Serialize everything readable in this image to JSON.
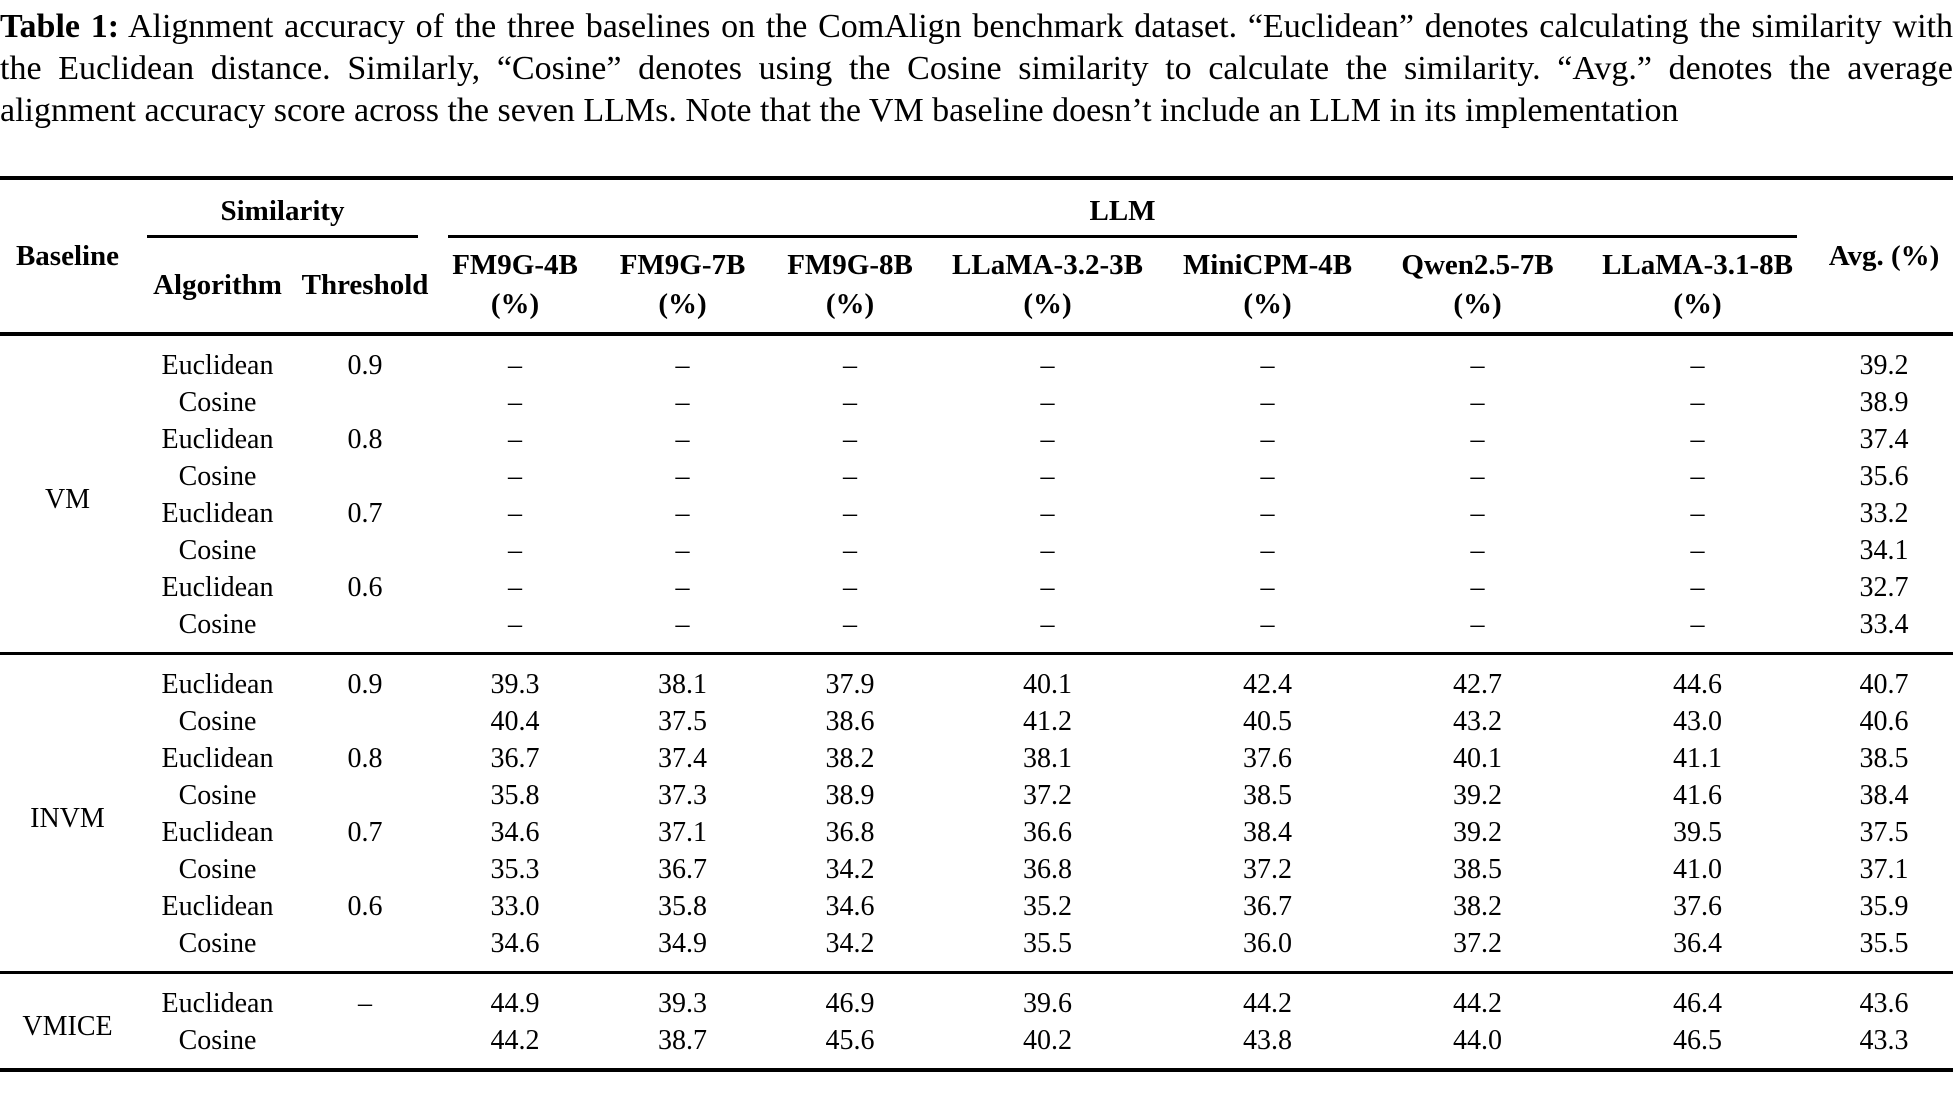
{
  "caption": {
    "label": "Table 1:",
    "text": "Alignment accuracy of the three baselines on the ComAlign benchmark dataset. “Euclidean” denotes calculating the similarity with the Euclidean distance. Similarly, “Cosine” denotes using the Cosine similarity to calculate the similarity. “Avg.” denotes the average alignment accuracy score across the seven LLMs. Note that the VM baseline doesn’t include an LLM in its implementation"
  },
  "table": {
    "header": {
      "baseline": "Baseline",
      "similarity_group": "Similarity",
      "llm_group": "LLM",
      "algorithm": "Algorithm",
      "threshold": "Threshold",
      "llm_columns": [
        "FM9G-4B",
        "FM9G-7B",
        "FM9G-8B",
        "LLaMA-3.2-3B",
        "MiniCPM-4B",
        "Qwen2.5-7B",
        "LLaMA-3.1-8B"
      ],
      "unit": "(%)",
      "avg": "Avg. (%)"
    },
    "sections": [
      {
        "baseline": "VM",
        "rows": [
          {
            "algorithm": "Euclidean",
            "threshold": "0.9",
            "values": [
              "–",
              "–",
              "–",
              "–",
              "–",
              "–",
              "–"
            ],
            "avg": "39.2"
          },
          {
            "algorithm": "Cosine",
            "threshold": "",
            "values": [
              "–",
              "–",
              "–",
              "–",
              "–",
              "–",
              "–"
            ],
            "avg": "38.9"
          },
          {
            "algorithm": "Euclidean",
            "threshold": "0.8",
            "values": [
              "–",
              "–",
              "–",
              "–",
              "–",
              "–",
              "–"
            ],
            "avg": "37.4"
          },
          {
            "algorithm": "Cosine",
            "threshold": "",
            "values": [
              "–",
              "–",
              "–",
              "–",
              "–",
              "–",
              "–"
            ],
            "avg": "35.6"
          },
          {
            "algorithm": "Euclidean",
            "threshold": "0.7",
            "values": [
              "–",
              "–",
              "–",
              "–",
              "–",
              "–",
              "–"
            ],
            "avg": "33.2"
          },
          {
            "algorithm": "Cosine",
            "threshold": "",
            "values": [
              "–",
              "–",
              "–",
              "–",
              "–",
              "–",
              "–"
            ],
            "avg": "34.1"
          },
          {
            "algorithm": "Euclidean",
            "threshold": "0.6",
            "values": [
              "–",
              "–",
              "–",
              "–",
              "–",
              "–",
              "–"
            ],
            "avg": "32.7"
          },
          {
            "algorithm": "Cosine",
            "threshold": "",
            "values": [
              "–",
              "–",
              "–",
              "–",
              "–",
              "–",
              "–"
            ],
            "avg": "33.4"
          }
        ]
      },
      {
        "baseline": "INVM",
        "rows": [
          {
            "algorithm": "Euclidean",
            "threshold": "0.9",
            "values": [
              "39.3",
              "38.1",
              "37.9",
              "40.1",
              "42.4",
              "42.7",
              "44.6"
            ],
            "avg": "40.7"
          },
          {
            "algorithm": "Cosine",
            "threshold": "",
            "values": [
              "40.4",
              "37.5",
              "38.6",
              "41.2",
              "40.5",
              "43.2",
              "43.0"
            ],
            "avg": "40.6"
          },
          {
            "algorithm": "Euclidean",
            "threshold": "0.8",
            "values": [
              "36.7",
              "37.4",
              "38.2",
              "38.1",
              "37.6",
              "40.1",
              "41.1"
            ],
            "avg": "38.5"
          },
          {
            "algorithm": "Cosine",
            "threshold": "",
            "values": [
              "35.8",
              "37.3",
              "38.9",
              "37.2",
              "38.5",
              "39.2",
              "41.6"
            ],
            "avg": "38.4"
          },
          {
            "algorithm": "Euclidean",
            "threshold": "0.7",
            "values": [
              "34.6",
              "37.1",
              "36.8",
              "36.6",
              "38.4",
              "39.2",
              "39.5"
            ],
            "avg": "37.5"
          },
          {
            "algorithm": "Cosine",
            "threshold": "",
            "values": [
              "35.3",
              "36.7",
              "34.2",
              "36.8",
              "37.2",
              "38.5",
              "41.0"
            ],
            "avg": "37.1"
          },
          {
            "algorithm": "Euclidean",
            "threshold": "0.6",
            "values": [
              "33.0",
              "35.8",
              "34.6",
              "35.2",
              "36.7",
              "38.2",
              "37.6"
            ],
            "avg": "35.9"
          },
          {
            "algorithm": "Cosine",
            "threshold": "",
            "values": [
              "34.6",
              "34.9",
              "34.2",
              "35.5",
              "36.0",
              "37.2",
              "36.4"
            ],
            "avg": "35.5"
          }
        ]
      },
      {
        "baseline": "VMICE",
        "rows": [
          {
            "algorithm": "Euclidean",
            "threshold": "–",
            "values": [
              "44.9",
              "39.3",
              "46.9",
              "39.6",
              "44.2",
              "44.2",
              "46.4"
            ],
            "avg": "43.6"
          },
          {
            "algorithm": "Cosine",
            "threshold": "",
            "values": [
              "44.2",
              "38.7",
              "45.6",
              "40.2",
              "43.8",
              "44.0",
              "46.5"
            ],
            "avg": "43.3"
          }
        ]
      }
    ]
  }
}
